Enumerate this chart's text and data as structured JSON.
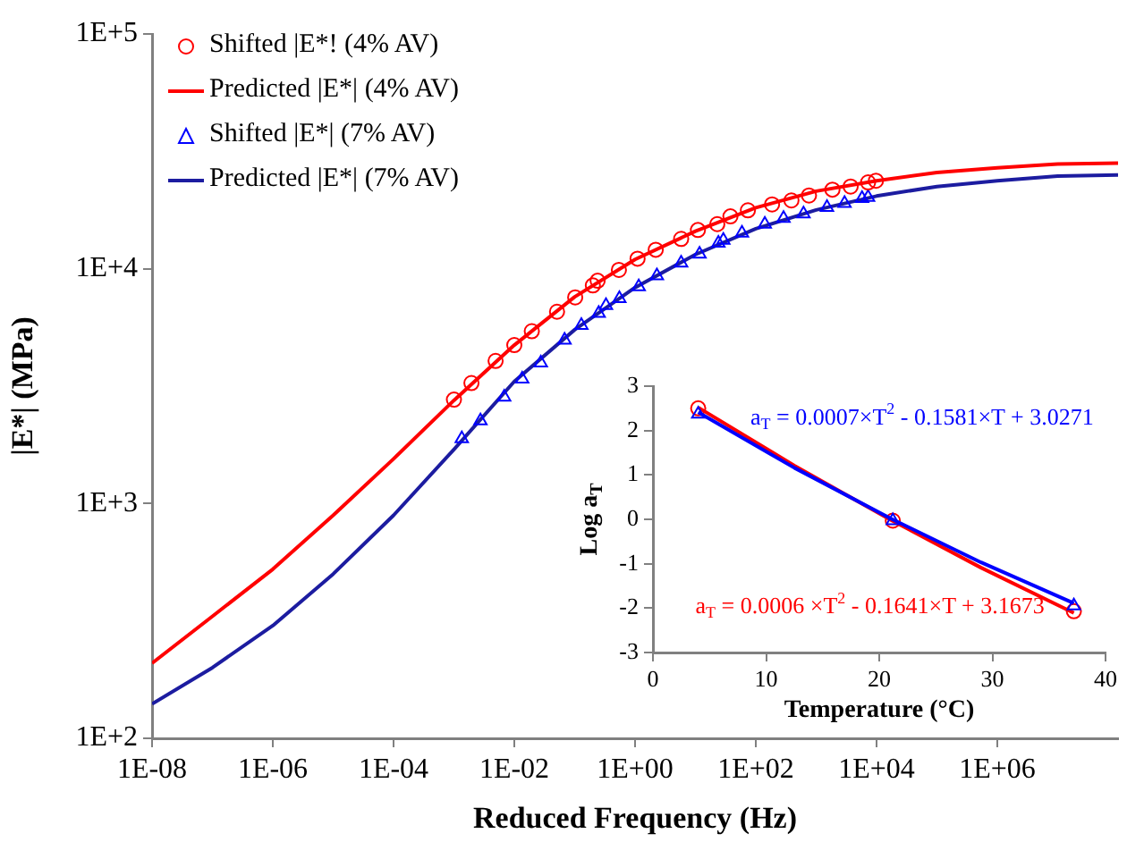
{
  "chart_data": [
    {
      "type": "line",
      "xlabel": "Reduced Frequency (Hz)",
      "ylabel": "|E*| (MPa)",
      "log": "xy",
      "grid": false,
      "legend": "top left",
      "xlim": [
        1e-08,
        100000000.0
      ],
      "ylim": [
        100,
        100000
      ],
      "xticks": [
        {
          "value": 1e-08,
          "label": "1E-08"
        },
        {
          "value": 1e-06,
          "label": "1E-06"
        },
        {
          "value": 0.0001,
          "label": "1E-04"
        },
        {
          "value": 0.01,
          "label": "1E-02"
        },
        {
          "value": 1,
          "label": "1E+00"
        },
        {
          "value": 100,
          "label": "1E+02"
        },
        {
          "value": 10000,
          "label": "1E+04"
        },
        {
          "value": 1000000,
          "label": "1E+06"
        }
      ],
      "yticks": [
        {
          "value": 100,
          "label": "1E+2"
        },
        {
          "value": 1000,
          "label": "1E+3"
        },
        {
          "value": 10000,
          "label": "1E+4"
        },
        {
          "value": 100000,
          "label": "1E+5"
        }
      ],
      "series": [
        {
          "name": "Shifted |E*! (4% AV)",
          "type": "scatter",
          "marker": "circle",
          "color": "#ff0000",
          "x": [
            0.001,
            0.00195,
            0.0049,
            0.01,
            0.0195,
            0.051,
            0.102,
            0.2,
            0.24,
            0.54,
            1.1,
            2.2,
            5.8,
            11,
            23,
            38,
            74,
            186,
            389,
            760,
            1860,
            3720,
            7240,
            9770
          ],
          "values": [
            2770,
            3260,
            4050,
            4730,
            5420,
            6560,
            7550,
            8490,
            8890,
            9890,
            11040,
            12050,
            13400,
            14620,
            15490,
            16710,
            17740,
            18790,
            19540,
            20510,
            21730,
            22390,
            23330,
            23710
          ]
        },
        {
          "name": "Predicted |E*| (4% AV)",
          "type": "line",
          "marker": "none",
          "color": "#ff0000",
          "x": [
            1e-08,
            1e-07,
            1e-06,
            1e-05,
            0.0001,
            0.001,
            0.01,
            0.1,
            1,
            10,
            100,
            1000,
            10000,
            100000,
            1000000,
            10000000,
            100000000
          ],
          "values": [
            209,
            331,
            525,
            891,
            1550,
            2750,
            4730,
            7590,
            10960,
            14450,
            18200,
            21400,
            23700,
            25700,
            26900,
            27900,
            28200
          ]
        },
        {
          "name": "Shifted |E*| (7% AV)",
          "type": "scatter",
          "marker": "triangle",
          "color": "#0000ff",
          "x": [
            0.00135,
            0.00275,
            0.0068,
            0.0135,
            0.0275,
            0.068,
            0.129,
            0.25,
            0.33,
            0.55,
            1.15,
            2.3,
            5.8,
            11.7,
            24,
            29,
            59,
            141,
            288,
            617,
            1510,
            2950,
            5750,
            7240
          ],
          "values": [
            1890,
            2250,
            2840,
            3390,
            3970,
            4970,
            5740,
            6460,
            6970,
            7460,
            8390,
            9330,
            10590,
            11560,
            12850,
            13240,
            14190,
            15490,
            16410,
            17140,
            18240,
            19010,
            19910,
            20140
          ]
        },
        {
          "name": "Predicted |E*| (7% AV)",
          "type": "line",
          "marker": "none",
          "color": "#1c1ca0",
          "x": [
            1e-08,
            1e-07,
            1e-06,
            1e-05,
            0.0001,
            0.001,
            0.01,
            0.1,
            1,
            10,
            100,
            1000,
            10000,
            100000,
            1000000,
            10000000,
            100000000
          ],
          "values": [
            140,
            200,
            302,
            501,
            891,
            1700,
            3310,
            5500,
            8320,
            11500,
            14800,
            17800,
            20400,
            22400,
            23700,
            24800,
            25100
          ]
        }
      ]
    },
    {
      "type": "line",
      "xlabel": "Temperature (°C)",
      "ylabel": "Log a$_{T}$",
      "grid": false,
      "xlim": [
        0,
        40
      ],
      "ylim": [
        -3,
        3
      ],
      "xticks": [
        0,
        10,
        20,
        30,
        40
      ],
      "yticks": [
        -3,
        -2,
        -1,
        0,
        1,
        2,
        3
      ],
      "annotations": [
        "a$_{T}$ = 0.0007×T$^{2}$ - 0.1581×T + 3.0271",
        "a$_{T}$ = 0.0006 ×T$^{2}$ - 0.1641×T + 3.1673"
      ],
      "series": [
        {
          "type": "scatter",
          "marker": "triangle",
          "color": "#0000ff",
          "x": [
            4,
            21.2,
            37.2
          ],
          "values": [
            2.37,
            -0.03,
            -1.95
          ]
        },
        {
          "type": "line",
          "marker": "none",
          "color": "#0000ff",
          "x": [
            4,
            12.5,
            21,
            29,
            37.2
          ],
          "values": [
            2.41,
            1.16,
            0.02,
            -0.97,
            -1.89
          ]
        },
        {
          "type": "scatter",
          "marker": "circle",
          "color": "#ff0000",
          "x": [
            4,
            21.2,
            37.2
          ],
          "values": [
            2.5,
            -0.03,
            -2.07
          ]
        },
        {
          "type": "line",
          "marker": "none",
          "color": "#ff0000",
          "x": [
            4,
            12.5,
            21,
            29,
            37.2
          ],
          "values": [
            2.52,
            1.21,
            -0.01,
            -1.09,
            -2.11
          ]
        }
      ]
    }
  ]
}
